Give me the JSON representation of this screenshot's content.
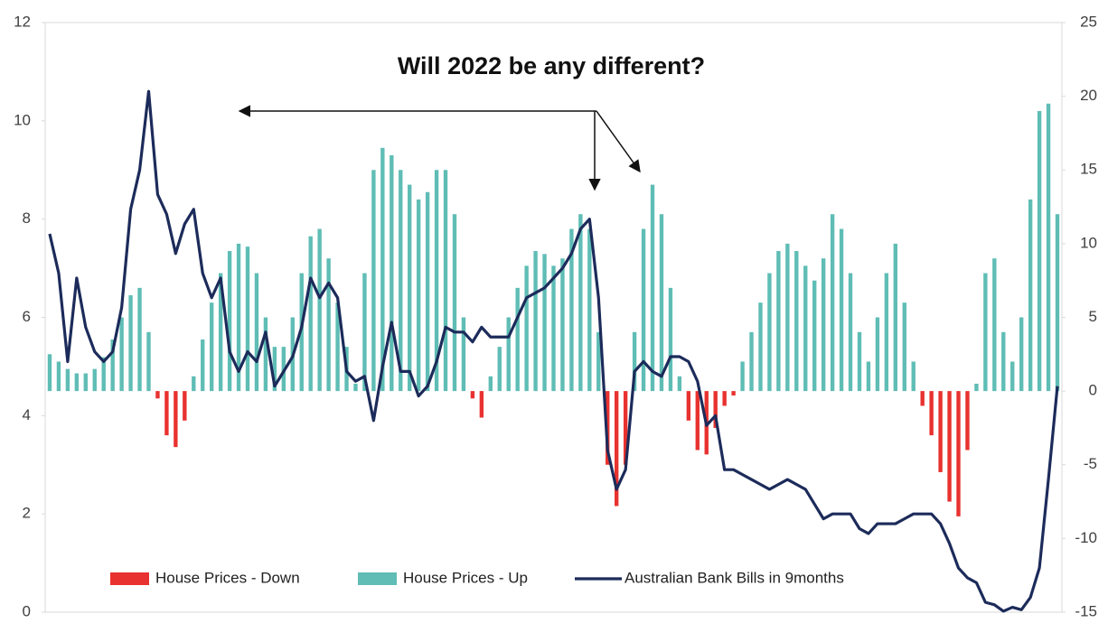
{
  "chart_data": {
    "type": "bar-line",
    "title": "Will 2022 be any different?",
    "categories": [
      null,
      null,
      null,
      null,
      null,
      null,
      null,
      null,
      null,
      null,
      null,
      null,
      null,
      null,
      null,
      null,
      null,
      null,
      null,
      null,
      null,
      null,
      null,
      null,
      null,
      null,
      null,
      null,
      null,
      null,
      null,
      null,
      null,
      null,
      null,
      null,
      null,
      null,
      null,
      null,
      null,
      null,
      null,
      null,
      null,
      null,
      null,
      null,
      null,
      null,
      null,
      null,
      null,
      null,
      null,
      null,
      null,
      null,
      null,
      null,
      null,
      null,
      null,
      null,
      null,
      null,
      null,
      null,
      null,
      null,
      null,
      null,
      null,
      null,
      null,
      null,
      null,
      null,
      null,
      null,
      null,
      null,
      null,
      null,
      null,
      null,
      null,
      null,
      null,
      null,
      null,
      null,
      null,
      null,
      null,
      null,
      null,
      null,
      null,
      null,
      null,
      null,
      null,
      null,
      null,
      null,
      null,
      null,
      null,
      null,
      null,
      null,
      null
    ],
    "series": [
      {
        "name": "House Prices - Down",
        "color": "#e8322f",
        "kind": "bar",
        "axis": "y2",
        "values": [
          null,
          null,
          null,
          null,
          null,
          null,
          null,
          null,
          null,
          null,
          null,
          null,
          -0.5,
          -3,
          -3.8,
          -2,
          null,
          null,
          null,
          null,
          null,
          null,
          null,
          null,
          null,
          null,
          null,
          null,
          null,
          null,
          null,
          null,
          null,
          null,
          null,
          null,
          null,
          null,
          null,
          null,
          null,
          null,
          null,
          null,
          null,
          null,
          null,
          -0.5,
          -1.8,
          null,
          null,
          null,
          null,
          null,
          null,
          null,
          null,
          null,
          null,
          null,
          null,
          null,
          -5,
          -7.8,
          -5,
          null,
          null,
          null,
          null,
          null,
          null,
          -2,
          -4,
          -4.3,
          -2.5,
          -1,
          -0.3,
          null,
          null,
          null,
          null,
          null,
          null,
          null,
          null,
          null,
          null,
          null,
          null,
          null,
          null,
          null,
          null,
          null,
          null,
          null,
          null,
          -1,
          -3,
          -5.5,
          -7.5,
          -8.5,
          -4,
          null,
          null,
          null,
          null,
          null,
          null,
          null,
          null,
          null,
          null
        ]
      },
      {
        "name": "House Prices - Up",
        "color": "#5fbdb5",
        "kind": "bar",
        "axis": "y2",
        "values": [
          2.5,
          2,
          1.5,
          1.2,
          1.2,
          1.5,
          2.3,
          3.5,
          5,
          6.5,
          7,
          4,
          null,
          null,
          null,
          null,
          1,
          3.5,
          6,
          8,
          9.5,
          10,
          9.8,
          8,
          5,
          3,
          3,
          5,
          8,
          10.5,
          11,
          9,
          6,
          3,
          0.5,
          8,
          15,
          16.5,
          16,
          15,
          14,
          13,
          13.5,
          15,
          15,
          12,
          5,
          null,
          null,
          1,
          3,
          5,
          7,
          8.5,
          9.5,
          9.3,
          8.5,
          9,
          11,
          12,
          11,
          4,
          null,
          null,
          null,
          4,
          11,
          14,
          12,
          7,
          1,
          null,
          null,
          null,
          null,
          null,
          null,
          2,
          4,
          6,
          8,
          9.5,
          10,
          9.5,
          8.5,
          7.5,
          9,
          12,
          11,
          8,
          4,
          2,
          5,
          8,
          10,
          6,
          2,
          null,
          null,
          null,
          null,
          null,
          null,
          0.5,
          8,
          9,
          4,
          2,
          5,
          13,
          19,
          19.5,
          12
        ]
      },
      {
        "name": "Australian Bank Bills in 9months",
        "color": "#1c2b5a",
        "kind": "line",
        "values": [
          7.7,
          6.9,
          5.1,
          6.8,
          5.8,
          5.3,
          5.1,
          5.3,
          6.2,
          8.2,
          9.0,
          10.6,
          8.5,
          8.1,
          7.3,
          7.9,
          8.2,
          6.9,
          6.4,
          6.8,
          5.3,
          4.9,
          5.3,
          5.1,
          5.7,
          4.6,
          4.9,
          5.2,
          5.8,
          6.8,
          6.4,
          6.7,
          6.4,
          4.9,
          4.7,
          4.8,
          3.9,
          5.0,
          5.9,
          4.9,
          4.9,
          4.4,
          4.6,
          5.1,
          5.8,
          5.7,
          5.7,
          5.5,
          5.8,
          5.6,
          5.6,
          5.6,
          6.0,
          6.4,
          6.5,
          6.6,
          6.8,
          7.0,
          7.3,
          7.8,
          8.0,
          6.4,
          3.3,
          2.5,
          2.9,
          4.9,
          5.1,
          4.9,
          4.8,
          5.2,
          5.2,
          5.1,
          4.7,
          3.8,
          4.0,
          2.9,
          2.9,
          2.8,
          2.7,
          2.6,
          2.5,
          2.6,
          2.7,
          2.6,
          2.5,
          2.2,
          1.9,
          2.0,
          2.0,
          2.0,
          1.7,
          1.6,
          1.8,
          1.8,
          1.8,
          1.9,
          2.0,
          2.0,
          2.0,
          1.8,
          1.4,
          0.9,
          0.7,
          0.6,
          0.2,
          0.15,
          0.02,
          0.1,
          0.05,
          0.3,
          0.9,
          2.7,
          4.6
        ]
      }
    ],
    "ylim": [
      0,
      12
    ],
    "yticks": [
      0,
      2,
      4,
      6,
      8,
      10,
      12
    ],
    "y2lim": [
      -15,
      25
    ],
    "y2ticks": [
      -15,
      -10,
      -5,
      0,
      5,
      10,
      15,
      20,
      25
    ],
    "grid": false,
    "legend": "bottom"
  }
}
